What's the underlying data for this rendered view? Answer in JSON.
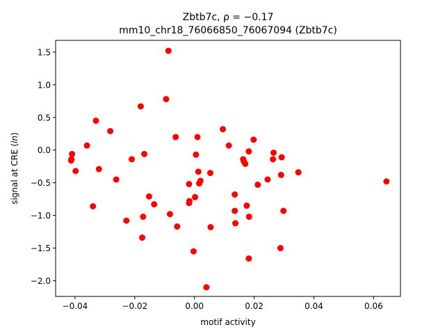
{
  "chart_data": {
    "type": "scatter",
    "title_line1": "Zbtb7c, ρ = −0.17",
    "title_line2": "mm10_chr18_76066850_76067094 (Zbtb7c)",
    "xlabel": "motif activity",
    "ylabel": "signal at CRE (ln)",
    "xlim": [
      -0.0465,
      0.069
    ],
    "ylim": [
      -2.24,
      1.68
    ],
    "xticks": [
      -0.04,
      -0.02,
      0.0,
      0.02,
      0.04,
      0.06
    ],
    "xtick_labels": [
      "−0.04",
      "−0.02",
      "0.00",
      "0.02",
      "0.04",
      "0.06"
    ],
    "yticks": [
      1.5,
      1.0,
      0.5,
      0.0,
      -0.5,
      -1.0,
      -1.5,
      -2.0
    ],
    "ytick_labels": [
      "1.5",
      "1.0",
      "0.5",
      "0.0",
      "−0.5",
      "−1.0",
      "−1.5",
      "−2.0"
    ],
    "grid": false,
    "marker_color": "#ff0000",
    "points": [
      {
        "x": -0.0087,
        "y": 1.52
      },
      {
        "x": -0.018,
        "y": 0.67
      },
      {
        "x": -0.0095,
        "y": 0.78
      },
      {
        "x": -0.033,
        "y": 0.45
      },
      {
        "x": -0.0282,
        "y": 0.29
      },
      {
        "x": -0.036,
        "y": 0.07
      },
      {
        "x": -0.041,
        "y": -0.06
      },
      {
        "x": -0.0412,
        "y": -0.14
      },
      {
        "x": -0.0413,
        "y": -0.16
      },
      {
        "x": -0.0398,
        "y": -0.32
      },
      {
        "x": -0.032,
        "y": -0.29
      },
      {
        "x": -0.021,
        "y": -0.14
      },
      {
        "x": -0.0168,
        "y": -0.06
      },
      {
        "x": -0.0262,
        "y": -0.45
      },
      {
        "x": -0.034,
        "y": -0.86
      },
      {
        "x": -0.0152,
        "y": -0.71
      },
      {
        "x": -0.0135,
        "y": -0.83
      },
      {
        "x": -0.0228,
        "y": -1.08
      },
      {
        "x": -0.0172,
        "y": -1.02
      },
      {
        "x": -0.0082,
        "y": -0.98
      },
      {
        "x": -0.0058,
        "y": -1.17
      },
      {
        "x": -0.0175,
        "y": -1.34
      },
      {
        "x": -0.0063,
        "y": 0.2
      },
      {
        "x": 0.001,
        "y": 0.2
      },
      {
        "x": 0.0005,
        "y": -0.07
      },
      {
        "x": 0.0013,
        "y": -0.33
      },
      {
        "x": 0.0053,
        "y": -0.35
      },
      {
        "x": 0.002,
        "y": -0.47
      },
      {
        "x": 0.0016,
        "y": -0.51
      },
      {
        "x": -0.0018,
        "y": -0.52
      },
      {
        "x": -0.0017,
        "y": -0.78
      },
      {
        "x": -0.0018,
        "y": -0.81
      },
      {
        "x": 0.0002,
        "y": -0.72
      },
      {
        "x": 0.0054,
        "y": -1.18
      },
      {
        "x": -0.0003,
        "y": -1.55
      },
      {
        "x": 0.004,
        "y": -2.1
      },
      {
        "x": 0.0095,
        "y": 0.32
      },
      {
        "x": 0.0115,
        "y": 0.07
      },
      {
        "x": 0.0163,
        "y": -0.14
      },
      {
        "x": 0.0165,
        "y": -0.17
      },
      {
        "x": 0.017,
        "y": -0.21
      },
      {
        "x": 0.0182,
        "y": -0.02
      },
      {
        "x": 0.0198,
        "y": 0.16
      },
      {
        "x": 0.0212,
        "y": -0.53
      },
      {
        "x": 0.0135,
        "y": -0.68
      },
      {
        "x": 0.0175,
        "y": -0.85
      },
      {
        "x": 0.0135,
        "y": -0.93
      },
      {
        "x": 0.0183,
        "y": -1.02
      },
      {
        "x": 0.0137,
        "y": -1.12
      },
      {
        "x": 0.0182,
        "y": -1.66
      },
      {
        "x": 0.0265,
        "y": -0.04
      },
      {
        "x": 0.0263,
        "y": -0.14
      },
      {
        "x": 0.0292,
        "y": -0.11
      },
      {
        "x": 0.0245,
        "y": -0.45
      },
      {
        "x": 0.029,
        "y": -0.38
      },
      {
        "x": 0.0348,
        "y": -0.34
      },
      {
        "x": 0.0298,
        "y": -0.93
      },
      {
        "x": 0.0288,
        "y": -1.5
      },
      {
        "x": 0.0643,
        "y": -0.48
      }
    ]
  }
}
